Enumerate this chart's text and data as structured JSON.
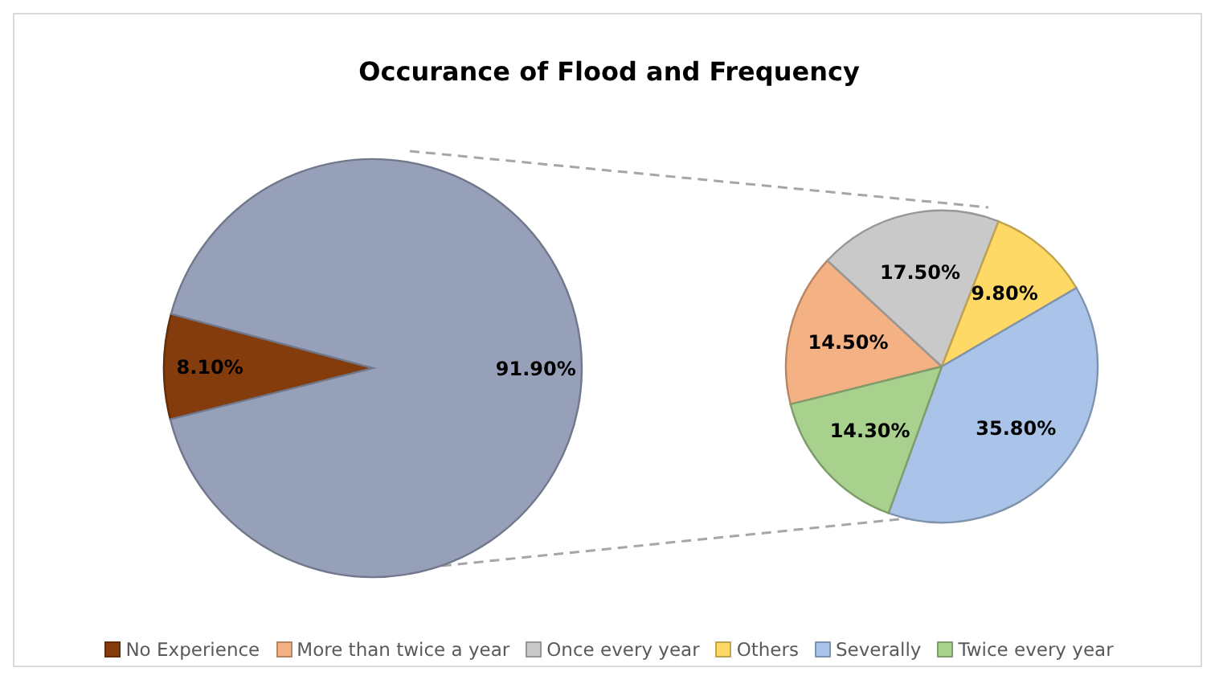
{
  "chart_data": [
    {
      "type": "pie",
      "title": "Occurance of Flood and Frequency",
      "categories": [
        "No Experience",
        null
      ],
      "values": [
        8.1,
        91.9
      ],
      "colors": [
        "#843c0c",
        "#97a0b9"
      ],
      "value_labels": [
        "8.10%",
        "91.90%"
      ],
      "legend": "bottom"
    },
    {
      "type": "pie",
      "categories": [
        "More than twice a year",
        "Once every year",
        "Others",
        "Severally",
        "Twice every year"
      ],
      "values": [
        14.5,
        17.5,
        9.8,
        35.8,
        14.3
      ],
      "colors": [
        "#f4b183",
        "#c9c9c9",
        "#ffd966",
        "#a9c4e8",
        "#a9d18e"
      ],
      "value_labels": [
        "14.50%",
        "17.50%",
        "9.80%",
        "35.80%",
        "14.30%"
      ],
      "legend": "bottom"
    }
  ]
}
